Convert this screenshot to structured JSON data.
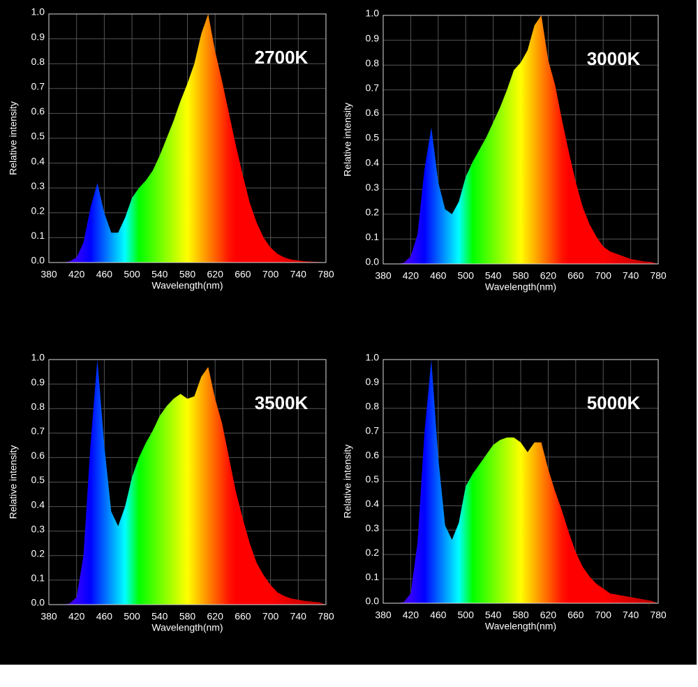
{
  "chart_data": [
    {
      "type": "area",
      "title": "2700K",
      "xlabel": "Wavelength(nm)",
      "ylabel": "Relative intensity",
      "x": [
        380,
        390,
        400,
        410,
        420,
        430,
        440,
        450,
        460,
        470,
        480,
        490,
        500,
        510,
        520,
        530,
        540,
        550,
        560,
        570,
        580,
        590,
        600,
        610,
        620,
        630,
        640,
        650,
        660,
        670,
        680,
        690,
        700,
        710,
        720,
        730,
        740,
        750,
        760,
        770,
        780
      ],
      "values": [
        0,
        0,
        0,
        0.005,
        0.02,
        0.08,
        0.22,
        0.32,
        0.2,
        0.12,
        0.12,
        0.18,
        0.26,
        0.3,
        0.33,
        0.37,
        0.43,
        0.5,
        0.57,
        0.65,
        0.72,
        0.8,
        0.92,
        1.0,
        0.85,
        0.73,
        0.6,
        0.47,
        0.35,
        0.24,
        0.16,
        0.1,
        0.06,
        0.035,
        0.02,
        0.012,
        0.008,
        0.005,
        0.003,
        0.002,
        0
      ],
      "xlim": [
        380,
        780
      ],
      "xticks": [
        380,
        420,
        460,
        500,
        540,
        580,
        620,
        660,
        700,
        740,
        780
      ],
      "ylim": [
        0,
        1
      ],
      "yticks": [
        {
          "value": 0,
          "label": "0.0"
        },
        0.1,
        0.2,
        0.3,
        0.4,
        0.5,
        0.6,
        0.7,
        0.8,
        0.9,
        {
          "value": 1,
          "label": "1.0"
        }
      ],
      "grid": true
    },
    {
      "type": "area",
      "title": "3000K",
      "xlabel": "Wavelength(nm)",
      "ylabel": "Relative intensity",
      "x": [
        380,
        390,
        400,
        410,
        420,
        430,
        440,
        450,
        460,
        470,
        480,
        490,
        500,
        510,
        520,
        530,
        540,
        550,
        560,
        570,
        580,
        590,
        600,
        610,
        620,
        630,
        640,
        650,
        660,
        670,
        680,
        690,
        700,
        710,
        720,
        730,
        740,
        750,
        760,
        770,
        780
      ],
      "values": [
        0,
        0,
        0,
        0.005,
        0.03,
        0.12,
        0.38,
        0.55,
        0.33,
        0.22,
        0.2,
        0.25,
        0.35,
        0.41,
        0.46,
        0.51,
        0.57,
        0.63,
        0.7,
        0.78,
        0.81,
        0.86,
        0.96,
        1.0,
        0.82,
        0.72,
        0.58,
        0.45,
        0.33,
        0.23,
        0.16,
        0.11,
        0.07,
        0.05,
        0.04,
        0.03,
        0.02,
        0.015,
        0.01,
        0.008,
        0
      ],
      "xlim": [
        380,
        780
      ],
      "xticks": [
        380,
        420,
        460,
        500,
        540,
        580,
        620,
        660,
        700,
        740,
        780
      ],
      "ylim": [
        0,
        1
      ],
      "yticks": [
        {
          "value": 0,
          "label": "0.0"
        },
        0.1,
        0.2,
        0.3,
        0.4,
        0.5,
        0.6,
        0.7,
        0.8,
        0.9,
        {
          "value": 1,
          "label": "1.0"
        }
      ],
      "grid": true
    },
    {
      "type": "area",
      "title": "3500K",
      "xlabel": "Wavelength(nm)",
      "ylabel": "Relative intensity",
      "x": [
        380,
        390,
        400,
        410,
        420,
        430,
        440,
        450,
        460,
        470,
        480,
        490,
        500,
        510,
        520,
        530,
        540,
        550,
        560,
        570,
        580,
        590,
        600,
        610,
        620,
        630,
        640,
        650,
        660,
        670,
        680,
        690,
        700,
        710,
        720,
        730,
        740,
        750,
        760,
        770,
        780
      ],
      "values": [
        0,
        0,
        0,
        0.005,
        0.03,
        0.2,
        0.65,
        1.0,
        0.65,
        0.38,
        0.32,
        0.4,
        0.52,
        0.6,
        0.66,
        0.71,
        0.77,
        0.81,
        0.84,
        0.86,
        0.84,
        0.85,
        0.93,
        0.97,
        0.84,
        0.74,
        0.6,
        0.46,
        0.35,
        0.25,
        0.17,
        0.12,
        0.08,
        0.05,
        0.035,
        0.025,
        0.02,
        0.015,
        0.012,
        0.01,
        0
      ],
      "xlim": [
        380,
        780
      ],
      "xticks": [
        380,
        420,
        460,
        500,
        540,
        580,
        620,
        660,
        700,
        740,
        780
      ],
      "ylim": [
        0,
        1
      ],
      "yticks": [
        {
          "value": 0,
          "label": "0.0"
        },
        0.1,
        0.2,
        0.3,
        0.4,
        0.5,
        0.6,
        0.7,
        0.8,
        0.9,
        {
          "value": 1,
          "label": "1.0"
        }
      ],
      "grid": true
    },
    {
      "type": "area",
      "title": "5000K",
      "xlabel": "Wavelength(nm)",
      "ylabel": "Relative intensity",
      "x": [
        380,
        390,
        400,
        410,
        420,
        430,
        440,
        450,
        460,
        470,
        480,
        490,
        500,
        510,
        520,
        530,
        540,
        550,
        560,
        570,
        580,
        590,
        600,
        610,
        620,
        630,
        640,
        650,
        660,
        670,
        680,
        690,
        700,
        710,
        720,
        730,
        740,
        750,
        760,
        770,
        780
      ],
      "values": [
        0,
        0,
        0,
        0.005,
        0.04,
        0.25,
        0.7,
        1.0,
        0.6,
        0.32,
        0.26,
        0.33,
        0.48,
        0.53,
        0.57,
        0.61,
        0.65,
        0.67,
        0.68,
        0.68,
        0.66,
        0.62,
        0.66,
        0.66,
        0.55,
        0.46,
        0.38,
        0.29,
        0.21,
        0.15,
        0.11,
        0.08,
        0.06,
        0.04,
        0.035,
        0.03,
        0.025,
        0.02,
        0.015,
        0.01,
        0
      ],
      "xlim": [
        380,
        780
      ],
      "xticks": [
        380,
        420,
        460,
        500,
        540,
        580,
        620,
        660,
        700,
        740,
        780
      ],
      "ylim": [
        0,
        1
      ],
      "yticks": [
        {
          "value": 0,
          "label": "0.0"
        },
        0.1,
        0.2,
        0.3,
        0.4,
        0.5,
        0.6,
        0.7,
        0.8,
        0.9,
        {
          "value": 1,
          "label": "1.0"
        }
      ],
      "grid": true
    }
  ]
}
